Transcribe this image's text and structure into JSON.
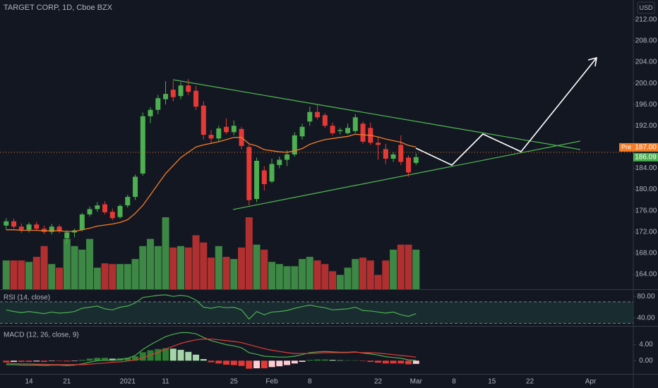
{
  "chart_data": [
    {
      "type": "candlestick",
      "title": "TARGET CORP, 1D, Cboe BZX",
      "currency": "USD",
      "categories": [
        null,
        null,
        null,
        "14",
        null,
        null,
        null,
        null,
        "21",
        null,
        null,
        null,
        null,
        null,
        null,
        null,
        "2021",
        null,
        null,
        null,
        null,
        "11",
        null,
        null,
        null,
        null,
        null,
        null,
        null,
        null,
        "25",
        null,
        null,
        null,
        null,
        "Feb",
        null,
        null,
        null,
        null,
        "8",
        null,
        null,
        null,
        null,
        null,
        null,
        null,
        null,
        "22",
        null,
        null,
        null,
        null,
        "Mar",
        null,
        null,
        null,
        null,
        "8",
        null,
        null,
        null,
        null,
        "15",
        null,
        null,
        null,
        null,
        "22",
        null,
        null,
        null,
        null,
        null,
        null,
        null,
        "Apr",
        null,
        null,
        null,
        null
      ],
      "open": [
        173.2,
        174.0,
        173.0,
        172.4,
        173.4,
        172.6,
        172.0,
        173.0,
        170.8,
        171.9,
        172.4,
        175.3,
        176.3,
        177.2,
        175.8,
        174.8,
        177.0,
        178.6,
        183.0,
        193.8,
        195.0,
        197.0,
        198.8,
        197.6,
        199.6,
        198.6,
        195.8,
        190.3,
        189.6,
        191.8,
        190.8,
        191.4,
        188.0,
        178.2,
        183.6,
        181.5,
        184.6,
        185.6,
        186.6,
        190.0,
        192.8,
        194.6,
        194.0,
        192.0,
        191.0,
        190.6,
        191.0,
        192.4,
        191.6,
        188.8,
        187.6,
        185.8,
        188.4,
        186.0,
        185.0,
        null,
        null,
        null,
        null,
        null,
        null,
        null,
        null,
        null,
        null,
        null,
        null,
        null,
        null,
        null,
        null,
        null,
        null,
        null,
        null,
        null,
        null,
        null,
        null,
        null,
        null,
        null
      ],
      "high": [
        174.6,
        174.5,
        173.6,
        173.8,
        173.9,
        173.2,
        173.5,
        173.4,
        172.3,
        172.6,
        175.6,
        176.8,
        177.6,
        177.8,
        176.4,
        177.2,
        179.0,
        182.8,
        194.5,
        195.5,
        197.8,
        200.4,
        200.5,
        200.2,
        200.8,
        199.5,
        196.6,
        191.2,
        192.0,
        193.4,
        193.0,
        191.8,
        188.4,
        186.0,
        184.4,
        185.8,
        186.2,
        187.4,
        190.8,
        192.4,
        195.6,
        196.0,
        194.4,
        192.6,
        191.6,
        192.4,
        194.2,
        192.8,
        192.6,
        189.8,
        188.6,
        187.0,
        190.2,
        186.4,
        186.8,
        null,
        null,
        null,
        null,
        null,
        null,
        null,
        null,
        null,
        null,
        null,
        null,
        null,
        null,
        null,
        null,
        null,
        null,
        null,
        null,
        null,
        null,
        null,
        null,
        null,
        null,
        null
      ],
      "low": [
        172.4,
        172.6,
        171.8,
        171.9,
        172.2,
        171.6,
        171.5,
        171.8,
        169.8,
        171.0,
        172.1,
        174.9,
        175.8,
        175.3,
        174.2,
        174.5,
        176.6,
        178.0,
        182.6,
        192.5,
        194.2,
        196.0,
        196.6,
        197.0,
        197.8,
        195.0,
        189.4,
        188.6,
        189.0,
        190.4,
        190.2,
        187.6,
        177.0,
        177.6,
        179.8,
        181.2,
        184.0,
        184.4,
        186.2,
        189.4,
        192.0,
        193.2,
        191.6,
        190.2,
        190.4,
        190.4,
        190.6,
        188.6,
        188.4,
        185.6,
        184.8,
        185.2,
        184.6,
        182.4,
        184.6,
        null,
        null,
        null,
        null,
        null,
        null,
        null,
        null,
        null,
        null,
        null,
        null,
        null,
        null,
        null,
        null,
        null,
        null,
        null,
        null,
        null,
        null,
        null,
        null,
        null,
        null,
        null
      ],
      "close": [
        174.0,
        173.0,
        172.4,
        173.4,
        172.6,
        172.0,
        173.0,
        172.2,
        171.9,
        172.3,
        175.3,
        176.3,
        177.0,
        175.7,
        174.6,
        176.9,
        178.6,
        182.4,
        193.8,
        195.0,
        197.2,
        198.0,
        197.4,
        199.6,
        198.4,
        195.6,
        190.3,
        189.6,
        191.5,
        190.8,
        192.0,
        188.2,
        178.0,
        185.4,
        181.0,
        184.8,
        185.6,
        186.6,
        190.2,
        191.8,
        194.6,
        193.6,
        192.0,
        190.6,
        191.2,
        191.6,
        193.6,
        189.0,
        188.8,
        188.4,
        185.8,
        186.6,
        185.2,
        183.2,
        186.09,
        null,
        null,
        null,
        null,
        null,
        null,
        null,
        null,
        null,
        null,
        null,
        null,
        null,
        null,
        null,
        null,
        null,
        null,
        null,
        null,
        null,
        null,
        null,
        null,
        null,
        null,
        null
      ],
      "up_color": "#4caf50",
      "down_color": "#e53935",
      "ma": {
        "color": "#f57c26",
        "values": [
          172.4,
          172.4,
          172.3,
          172.3,
          172.3,
          172.2,
          172.2,
          172.2,
          172.1,
          172.1,
          172.4,
          172.7,
          173.1,
          173.3,
          173.5,
          173.8,
          174.3,
          175.5,
          177.0,
          179.0,
          181.0,
          183.0,
          184.5,
          186.0,
          187.0,
          188.0,
          188.4,
          188.7,
          189.0,
          189.4,
          189.8,
          189.8,
          188.6,
          188.2,
          187.5,
          187.3,
          187.1,
          187.0,
          187.3,
          187.7,
          188.5,
          189.0,
          189.4,
          189.6,
          189.8,
          190.0,
          190.4,
          190.3,
          190.2,
          189.9,
          189.5,
          189.2,
          188.9,
          188.3,
          188.0,
          null,
          null,
          null,
          null,
          null,
          null,
          null,
          null,
          null,
          null,
          null,
          null,
          null,
          null,
          null,
          null,
          null,
          null,
          null,
          null,
          null,
          null,
          null,
          null,
          null,
          null,
          null
        ]
      },
      "volume": {
        "values": [
          4.0,
          4.0,
          4.0,
          3.8,
          4.5,
          6.0,
          3.5,
          3.0,
          7.0,
          6.0,
          5.5,
          7.0,
          3.0,
          3.6,
          3.5,
          3.5,
          3.5,
          4.2,
          6.0,
          7.0,
          6.0,
          10.0,
          5.8,
          6.0,
          5.8,
          7.5,
          6.5,
          4.4,
          6.0,
          4.5,
          4.2,
          5.8,
          10.0,
          6.2,
          5.5,
          3.8,
          3.5,
          3.2,
          3.2,
          4.2,
          4.5,
          4.0,
          3.5,
          2.5,
          2.0,
          3.0,
          4.2,
          4.4,
          4.0,
          2.0,
          4.0,
          5.5,
          6.2,
          6.2,
          5.5,
          null,
          null,
          null,
          null,
          null,
          null,
          null,
          null,
          null,
          null,
          null,
          null,
          null,
          null,
          null,
          null,
          null,
          null,
          null,
          null,
          null,
          null,
          null,
          null,
          null,
          null,
          null
        ]
      },
      "ylim": [
        161.2,
        215.7
      ],
      "yticks": [
        {
          "value": 164,
          "label": "164.00"
        },
        {
          "value": 168,
          "label": "168.00"
        },
        {
          "value": 172,
          "label": "172.00"
        },
        {
          "value": 176,
          "label": "176.00"
        },
        {
          "value": 180,
          "label": "180.00"
        },
        {
          "value": 184,
          "label": "184.00"
        },
        {
          "value": 188,
          "label": "188.00"
        },
        {
          "value": 192,
          "label": "192.00"
        },
        {
          "value": 196,
          "label": "196.00"
        },
        {
          "value": 200,
          "label": "200.00"
        },
        {
          "value": 204,
          "label": "204.00"
        },
        {
          "value": 208,
          "label": "208.00"
        },
        {
          "value": 212,
          "label": "212.00"
        }
      ],
      "premarket": {
        "tag": "Pre",
        "value": 187.0,
        "label": "187.00",
        "color": "#f57c26"
      },
      "last_price": {
        "value": 186.09,
        "label": "186.09",
        "color": "#4caf50"
      }
    },
    {
      "type": "line",
      "title": "RSI (14, close)",
      "series": [
        {
          "color": "#4caf50",
          "values": [
            55,
            52,
            50,
            52,
            50,
            48,
            51,
            49,
            50,
            52,
            58,
            60,
            62,
            57,
            55,
            60,
            62,
            68,
            78,
            80,
            82,
            83,
            80,
            82,
            80,
            73,
            60,
            58,
            61,
            59,
            60,
            55,
            38,
            52,
            46,
            51,
            52,
            54,
            58,
            61,
            64,
            61,
            59,
            55,
            56,
            57,
            60,
            54,
            53,
            51,
            49,
            51,
            46,
            43,
            48,
            null,
            null,
            null,
            null,
            null,
            null,
            null,
            null,
            null,
            null,
            null,
            null,
            null,
            null,
            null,
            null,
            null,
            null,
            null,
            null,
            null,
            null,
            null,
            null,
            null,
            null,
            null
          ]
        }
      ],
      "band": [
        30,
        70
      ],
      "band_color": "#1e3a3a",
      "ylim": [
        25.3,
        92
      ],
      "yticks": [
        {
          "value": 40,
          "label": "40.00"
        },
        {
          "value": 80,
          "label": "80.00"
        }
      ]
    },
    {
      "type": "macd",
      "title": "MACD (12, 26, close, 9)",
      "macd": {
        "color": "#4caf50",
        "values": [
          -1.0,
          -1.0,
          -1.1,
          -1.1,
          -1.1,
          -1.2,
          -1.1,
          -1.1,
          -1.2,
          -1.1,
          -0.8,
          -0.4,
          0.0,
          0.1,
          0.1,
          0.3,
          0.6,
          1.3,
          2.8,
          4.0,
          5.0,
          6.0,
          6.6,
          7.0,
          7.0,
          6.7,
          5.8,
          5.0,
          4.5,
          4.0,
          3.7,
          3.2,
          2.0,
          1.6,
          1.1,
          1.0,
          0.9,
          0.9,
          1.1,
          1.5,
          2.0,
          2.2,
          2.3,
          2.2,
          2.1,
          2.1,
          2.2,
          1.9,
          1.7,
          1.4,
          1.0,
          0.8,
          0.6,
          0.2,
          0.1,
          null,
          null,
          null,
          null,
          null,
          null,
          null,
          null,
          null,
          null,
          null,
          null,
          null,
          null,
          null,
          null,
          null,
          null,
          null,
          null,
          null,
          null,
          null,
          null,
          null,
          null,
          null
        ]
      },
      "signal": {
        "color": "#e53935",
        "values": [
          -0.6,
          -0.7,
          -0.8,
          -0.8,
          -0.9,
          -0.9,
          -1.0,
          -1.0,
          -1.0,
          -1.0,
          -1.0,
          -0.9,
          -0.7,
          -0.6,
          -0.4,
          -0.3,
          -0.1,
          0.2,
          0.7,
          1.4,
          2.1,
          2.9,
          3.6,
          4.3,
          4.8,
          5.2,
          5.4,
          5.4,
          5.2,
          5.0,
          4.8,
          4.5,
          4.0,
          3.5,
          3.0,
          2.6,
          2.3,
          2.0,
          1.8,
          1.8,
          1.8,
          1.9,
          2.0,
          2.0,
          2.0,
          2.0,
          2.1,
          2.0,
          2.0,
          1.9,
          1.7,
          1.5,
          1.3,
          1.1,
          0.9,
          null,
          null,
          null,
          null,
          null,
          null,
          null,
          null,
          null,
          null,
          null,
          null,
          null,
          null,
          null,
          null,
          null,
          null,
          null,
          null,
          null,
          null,
          null,
          null,
          null,
          null,
          null
        ]
      },
      "histogram": {
        "colors": [
          "#2e7d32",
          "#a5d6a7",
          "#e53935",
          "#ffcdd2"
        ],
        "values": [
          -0.4,
          -0.3,
          -0.3,
          -0.3,
          -0.2,
          -0.3,
          -0.1,
          -0.1,
          -0.2,
          -0.1,
          0.2,
          0.5,
          0.7,
          0.7,
          0.5,
          0.6,
          0.7,
          1.1,
          2.1,
          2.6,
          2.9,
          3.1,
          3.0,
          2.7,
          2.2,
          1.5,
          0.4,
          -0.4,
          -0.7,
          -1.0,
          -1.1,
          -1.3,
          -2.0,
          -1.9,
          -1.9,
          -1.6,
          -1.4,
          -1.1,
          -0.7,
          -0.3,
          0.2,
          0.3,
          0.3,
          0.2,
          0.1,
          0.1,
          0.1,
          -0.1,
          -0.3,
          -0.5,
          -0.7,
          -0.7,
          -0.7,
          -0.9,
          -0.8,
          null,
          null,
          null,
          null,
          null,
          null,
          null,
          null,
          null,
          null,
          null,
          null,
          null,
          null,
          null,
          null,
          null,
          null,
          null,
          null,
          null,
          null,
          null,
          null,
          null,
          null,
          null
        ]
      },
      "ylim": [
        -3.3,
        8.5
      ],
      "yticks": [
        {
          "value": 0,
          "label": "0.00"
        },
        {
          "value": 4,
          "label": "4.00"
        }
      ]
    }
  ]
}
